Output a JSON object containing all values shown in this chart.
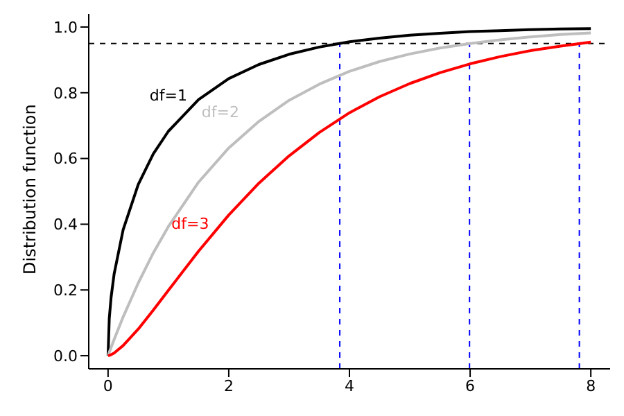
{
  "chart_data": {
    "type": "line",
    "ylabel": "Distribution function",
    "x": [
      0,
      0.02,
      0.05,
      0.1,
      0.25,
      0.5,
      0.75,
      1,
      1.5,
      2,
      2.5,
      3,
      3.5,
      4,
      4.5,
      5,
      5.5,
      6,
      6.5,
      7,
      7.5,
      8
    ],
    "series": [
      {
        "name": "df=1",
        "color": "#000000",
        "values": [
          0,
          0.113,
          0.177,
          0.248,
          0.383,
          0.521,
          0.614,
          0.683,
          0.779,
          0.843,
          0.886,
          0.917,
          0.939,
          0.955,
          0.966,
          0.975,
          0.981,
          0.986,
          0.989,
          0.992,
          0.994,
          0.995
        ]
      },
      {
        "name": "df=2",
        "color": "#bebebe",
        "values": [
          0,
          0.01,
          0.025,
          0.049,
          0.118,
          0.221,
          0.313,
          0.393,
          0.528,
          0.632,
          0.713,
          0.777,
          0.826,
          0.865,
          0.895,
          0.918,
          0.936,
          0.95,
          0.961,
          0.97,
          0.977,
          0.982
        ]
      },
      {
        "name": "df=3",
        "color": "#ff0000",
        "values": [
          0,
          0.001,
          0.003,
          0.008,
          0.031,
          0.081,
          0.139,
          0.199,
          0.318,
          0.428,
          0.525,
          0.608,
          0.679,
          0.739,
          0.788,
          0.828,
          0.861,
          0.888,
          0.91,
          0.928,
          0.942,
          0.954
        ]
      }
    ],
    "xlim": [
      -0.32,
      8.32
    ],
    "xticks": [
      0,
      2,
      4,
      6,
      8
    ],
    "ylim": [
      -0.04,
      1.04
    ],
    "yticks": [
      {
        "value": 0,
        "label": "0.0"
      },
      0.2,
      0.4,
      0.6,
      0.8,
      {
        "value": 1,
        "label": "1.0"
      }
    ],
    "ref_lines": [
      {
        "axis": "y",
        "value": 0.95,
        "color": "#000000",
        "line_style": "dashed"
      },
      {
        "axis": "x",
        "value": 3.84,
        "color": "#0000ff",
        "line_style": "dashed"
      },
      {
        "axis": "x",
        "value": 5.99,
        "color": "#0000ff",
        "line_style": "dashed"
      },
      {
        "axis": "x",
        "value": 7.81,
        "color": "#0000ff",
        "line_style": "dashed"
      }
    ],
    "grid": false,
    "legend": false
  }
}
